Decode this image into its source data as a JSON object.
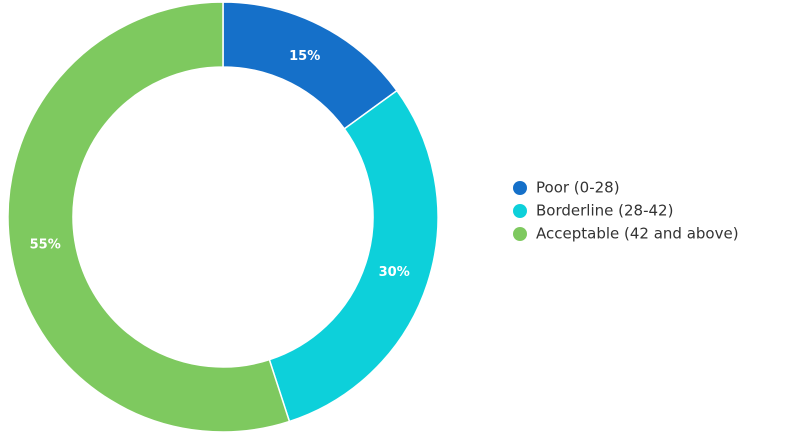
{
  "chart_data": {
    "type": "donut",
    "categories": [
      "Poor (0-28)",
      "Borderline (28-42)",
      "Acceptable (42 and above)"
    ],
    "values": [
      15,
      30,
      55
    ],
    "value_labels": [
      "15%",
      "30%",
      "55%"
    ],
    "colors": [
      "#1570c9",
      "#0dd0da",
      "#7ec95f"
    ],
    "legend": "right"
  }
}
